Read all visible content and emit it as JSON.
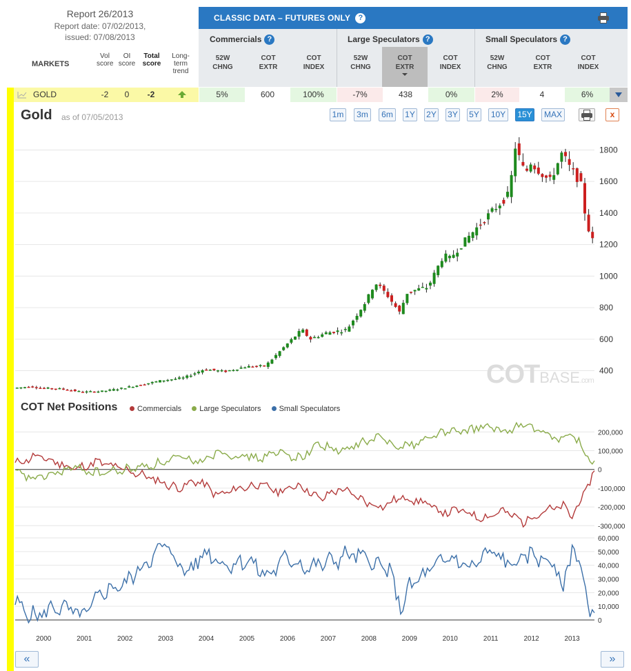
{
  "report": {
    "title": "Report 26/2013",
    "date": "Report date: 07/02/2013,",
    "issued": "issued: 07/08/2013"
  },
  "markets_header": {
    "markets": "MARKETS",
    "vol": [
      "Vol",
      "score"
    ],
    "oi": [
      "OI",
      "score"
    ],
    "total": [
      "Total",
      "score"
    ],
    "trend": [
      "Long-",
      "term",
      "trend"
    ]
  },
  "classic": {
    "title": "CLASSIC DATA – FUTURES ONLY",
    "help": "?"
  },
  "groups": [
    {
      "name": "Commercials",
      "cols": [
        [
          "52W",
          "CHNG"
        ],
        [
          "COT",
          "EXTR"
        ],
        [
          "COT",
          "INDEX"
        ]
      ]
    },
    {
      "name": "Large Speculators",
      "cols": [
        [
          "52W",
          "CHNG"
        ],
        [
          "COT",
          "EXTR"
        ],
        [
          "COT",
          "INDEX"
        ]
      ]
    },
    {
      "name": "Small Speculators",
      "cols": [
        [
          "52W",
          "CHNG"
        ],
        [
          "COT",
          "EXTR"
        ],
        [
          "COT",
          "INDEX"
        ]
      ]
    }
  ],
  "gold_row": {
    "name": "GOLD",
    "vol": "-2",
    "oi": "0",
    "total": "-2",
    "trend_direction": "up",
    "values": [
      "5%",
      "600",
      "100%",
      "-7%",
      "438",
      "0%",
      "2%",
      "4",
      "6%"
    ]
  },
  "chart": {
    "title": "Gold",
    "as_of": "as of 07/05/2013",
    "ranges": [
      "1m",
      "3m",
      "6m",
      "1Y",
      "2Y",
      "3Y",
      "5Y",
      "10Y",
      "15Y",
      "MAX"
    ],
    "active_range": "15Y",
    "close_label": "x",
    "watermark": {
      "a": "COT",
      "b": "BASE",
      "c": ".com"
    }
  },
  "cot": {
    "title": "COT Net Positions",
    "legend": [
      {
        "name": "Commercials",
        "color": "#b33a3a"
      },
      {
        "name": "Large Speculators",
        "color": "#8aab4a"
      },
      {
        "name": "Small Speculators",
        "color": "#3b6fa8"
      }
    ]
  },
  "nav": {
    "prev": "«",
    "next": "»"
  },
  "chart_data": [
    {
      "type": "candlestick",
      "title": "Gold",
      "x_ticks": [
        "2000",
        "2001",
        "2002",
        "2003",
        "2004",
        "2005",
        "2006",
        "2007",
        "2008",
        "2009",
        "2010",
        "2011",
        "2012",
        "2013"
      ],
      "y_ticks": [
        400,
        600,
        800,
        1000,
        1200,
        1400,
        1600,
        1800
      ],
      "ylim": [
        280,
        1920
      ],
      "xlim": [
        1999.3,
        2013.55
      ],
      "series": [
        {
          "name": "price (approx close, quarterly)",
          "x": [
            1999.3,
            1999.75,
            2000.0,
            2000.5,
            2001.0,
            2001.5,
            2002.0,
            2002.5,
            2003.0,
            2003.5,
            2004.0,
            2004.5,
            2005.0,
            2005.5,
            2006.0,
            2006.4,
            2006.6,
            2007.0,
            2007.5,
            2008.0,
            2008.2,
            2008.5,
            2008.8,
            2009.0,
            2009.5,
            2009.9,
            2010.0,
            2010.5,
            2011.0,
            2011.5,
            2011.65,
            2011.9,
            2012.0,
            2012.5,
            2012.8,
            2013.0,
            2013.25,
            2013.4,
            2013.55
          ],
          "values": [
            290,
            300,
            290,
            285,
            265,
            270,
            290,
            315,
            340,
            355,
            410,
            395,
            425,
            430,
            560,
            660,
            600,
            640,
            660,
            850,
            960,
            880,
            770,
            900,
            930,
            1140,
            1100,
            1250,
            1390,
            1520,
            1820,
            1640,
            1730,
            1600,
            1780,
            1680,
            1600,
            1340,
            1225
          ]
        }
      ]
    },
    {
      "type": "line",
      "title": "COT Net Positions",
      "x_ticks": [
        "2000",
        "2001",
        "2002",
        "2003",
        "2004",
        "2005",
        "2006",
        "2007",
        "2008",
        "2009",
        "2010",
        "2011",
        "2012",
        "2013"
      ],
      "y_ticks": [
        -300000,
        -200000,
        -100000,
        0,
        100000,
        200000
      ],
      "series": [
        {
          "name": "Commercials",
          "x": [
            1999.3,
            1999.8,
            2000.3,
            2000.8,
            2001.3,
            2001.8,
            2002.3,
            2002.8,
            2003.3,
            2003.8,
            2004.3,
            2004.8,
            2005.3,
            2005.8,
            2006.3,
            2006.8,
            2007.3,
            2007.8,
            2008.3,
            2008.8,
            2009.3,
            2009.8,
            2010.3,
            2010.8,
            2011.3,
            2011.8,
            2012.3,
            2012.8,
            2013.0,
            2013.3,
            2013.55
          ],
          "values": [
            30000,
            70000,
            40000,
            0,
            40000,
            10000,
            -20000,
            -60000,
            -100000,
            -60000,
            -140000,
            -100000,
            -80000,
            -120000,
            -80000,
            -160000,
            -100000,
            -160000,
            -200000,
            -150000,
            -170000,
            -230000,
            -220000,
            -260000,
            -220000,
            -280000,
            -220000,
            -200000,
            -250000,
            -130000,
            -10000
          ]
        },
        {
          "name": "Large Speculators",
          "x": [
            1999.3,
            1999.8,
            2000.3,
            2000.8,
            2001.3,
            2001.8,
            2002.3,
            2002.8,
            2003.3,
            2003.8,
            2004.3,
            2004.8,
            2005.3,
            2005.8,
            2006.3,
            2006.8,
            2007.3,
            2007.8,
            2008.3,
            2008.8,
            2009.3,
            2009.8,
            2010.3,
            2010.8,
            2011.3,
            2011.8,
            2012.3,
            2012.8,
            2013.0,
            2013.3,
            2013.55
          ],
          "values": [
            -20000,
            -50000,
            -20000,
            10000,
            -20000,
            -10000,
            10000,
            30000,
            60000,
            40000,
            100000,
            70000,
            60000,
            90000,
            60000,
            140000,
            90000,
            140000,
            170000,
            120000,
            150000,
            200000,
            200000,
            230000,
            200000,
            240000,
            190000,
            160000,
            190000,
            100000,
            20000
          ]
        }
      ]
    },
    {
      "type": "line",
      "title": "Small Speculators",
      "x_ticks": [
        "2000",
        "2001",
        "2002",
        "2003",
        "2004",
        "2005",
        "2006",
        "2007",
        "2008",
        "2009",
        "2010",
        "2011",
        "2012",
        "2013"
      ],
      "y_ticks": [
        0,
        10000,
        20000,
        30000,
        40000,
        50000,
        60000
      ],
      "series": [
        {
          "name": "Small Speculators",
          "x": [
            1999.3,
            1999.8,
            2000.3,
            2000.8,
            2001.0,
            2001.5,
            2002.0,
            2002.5,
            2003.0,
            2003.5,
            2004.0,
            2004.5,
            2005.0,
            2005.5,
            2006.0,
            2006.5,
            2007.0,
            2007.5,
            2008.0,
            2008.5,
            2008.8,
            2009.0,
            2009.5,
            2010.0,
            2010.5,
            2011.0,
            2011.5,
            2012.0,
            2012.5,
            2012.8,
            2013.0,
            2013.3,
            2013.45,
            2013.55
          ],
          "values": [
            12000,
            2000,
            10000,
            5000,
            3000,
            22000,
            26000,
            42000,
            55000,
            34000,
            50000,
            40000,
            44000,
            32000,
            46000,
            38000,
            42000,
            48000,
            44000,
            36000,
            8000,
            24000,
            36000,
            46000,
            38000,
            50000,
            40000,
            48000,
            42000,
            22000,
            56000,
            30000,
            0,
            2000
          ]
        }
      ]
    }
  ]
}
